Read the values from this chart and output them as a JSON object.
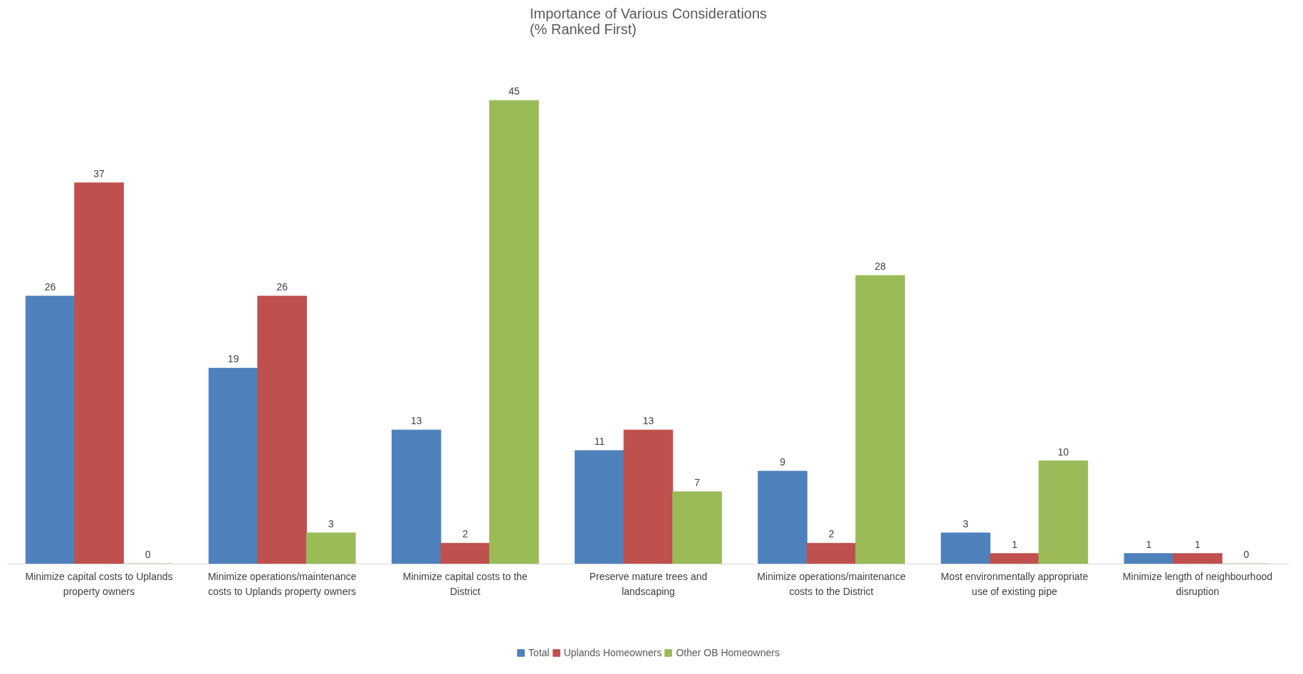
{
  "chart_data": {
    "type": "bar",
    "title": "Importance of Various Considerations\n(% Ranked First)",
    "categories": [
      "Minimize capital costs to Uplands property owners",
      "Minimize operations/maintenance costs to Uplands property owners",
      "Minimize capital costs to the District",
      "Preserve mature trees and landscaping",
      "Minimize operations/maintenance costs to the District",
      "Most environmentally appropriate use of existing pipe",
      "Minimize length of neighbourhood disruption"
    ],
    "series": [
      {
        "name": "Total",
        "color": "#4f81bd",
        "values": [
          26,
          19,
          13,
          11,
          9,
          3,
          1
        ]
      },
      {
        "name": "Uplands Homeowners",
        "color": "#c0504d",
        "values": [
          37,
          26,
          2,
          13,
          2,
          1,
          1
        ]
      },
      {
        "name": "Other OB Homeowners",
        "color": "#9bbb59",
        "values": [
          0,
          3,
          45,
          7,
          28,
          10,
          0
        ]
      }
    ],
    "data_labels": true,
    "legend": "bottom",
    "grid": false
  }
}
